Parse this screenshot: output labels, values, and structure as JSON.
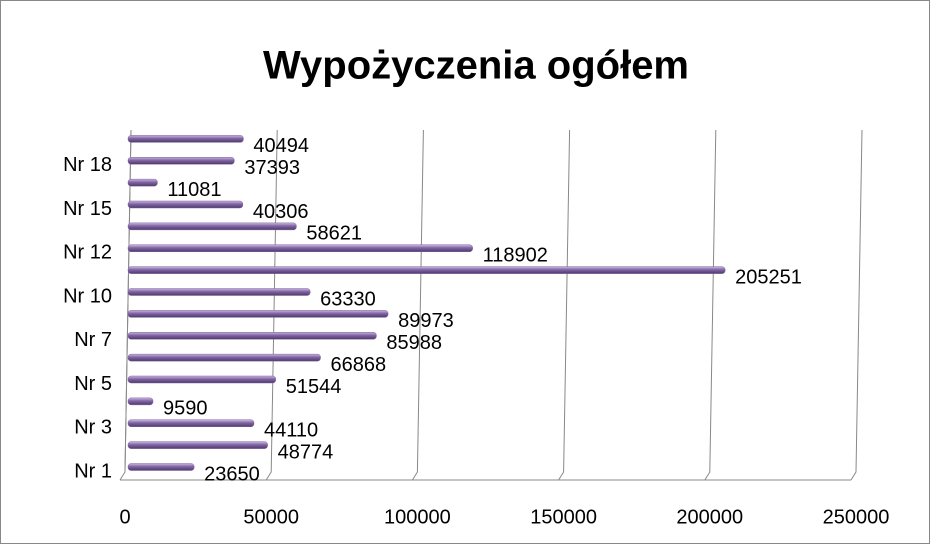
{
  "chart_data": {
    "type": "bar",
    "orientation": "horizontal",
    "title": "Wypożyczenia ogółem",
    "categories": [
      "Nr 1",
      null,
      "Nr 3",
      null,
      "Nr 5",
      null,
      "Nr 7",
      null,
      "Nr 10",
      null,
      "Nr 12",
      null,
      "Nr 15",
      null,
      "Nr 18",
      null
    ],
    "values": [
      23650,
      48774,
      44110,
      9590,
      51544,
      66868,
      85988,
      89973,
      63330,
      205251,
      118902,
      58621,
      40306,
      11081,
      37393,
      40494
    ],
    "color": "#8064a2",
    "xlim": [
      0,
      250000
    ],
    "xticks": [
      0,
      50000,
      100000,
      150000,
      200000,
      250000
    ],
    "grid": true
  }
}
